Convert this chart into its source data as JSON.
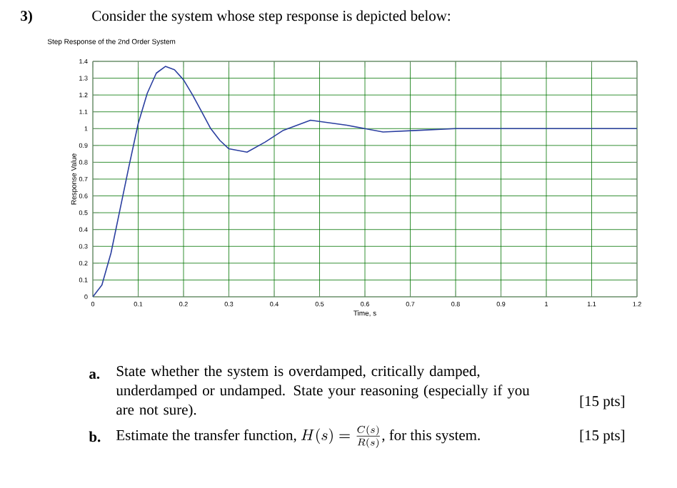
{
  "chart_data": {
    "type": "line",
    "title": "Step Response of the 2nd Order System",
    "xlabel": "Time, s",
    "ylabel": "Response Value",
    "x": [
      0,
      0.02,
      0.04,
      0.06,
      0.08,
      0.1,
      0.12,
      0.14,
      0.16,
      0.18,
      0.2,
      0.22,
      0.24,
      0.26,
      0.28,
      0.3,
      0.34,
      0.38,
      0.42,
      0.48,
      0.56,
      0.64,
      0.72,
      0.8,
      0.9,
      1.0,
      1.1,
      1.2
    ],
    "series": [
      {
        "color": "#2b3fa0",
        "values": [
          0,
          0.07,
          0.26,
          0.52,
          0.78,
          1.03,
          1.21,
          1.33,
          1.37,
          1.35,
          1.29,
          1.2,
          1.1,
          1.0,
          0.93,
          0.88,
          0.86,
          0.92,
          0.99,
          1.05,
          1.02,
          0.98,
          0.99,
          1.0,
          1.0,
          1.0,
          1.0,
          1.0
        ]
      }
    ],
    "xlim": [
      0,
      1.2
    ],
    "ylim": [
      0,
      1.4
    ],
    "xticks": [
      0,
      0.1,
      0.2,
      0.3,
      0.4,
      0.5,
      0.6,
      0.7,
      0.8,
      0.9,
      1,
      1.1,
      1.2
    ],
    "yticks": [
      0,
      0.1,
      0.2,
      0.3,
      0.4,
      0.5,
      0.6,
      0.7,
      0.8,
      0.9,
      1,
      1.1,
      1.2,
      1.3,
      1.4
    ],
    "grid": true,
    "marker": "none",
    "line_style": "solid",
    "annotations": [
      "3)",
      "Consider the system whose step response is depicted below:",
      "a.",
      "State whether the system is overdamped, critically damped, underdamped or undamped. State your reasoning (especially if you are not sure).",
      "[15 pts]",
      "b.",
      "Estimate the transfer function, ",
      "H(s) = \\frac{C(s)}{R(s)}",
      ", for this system.",
      "[15 pts]"
    ]
  }
}
